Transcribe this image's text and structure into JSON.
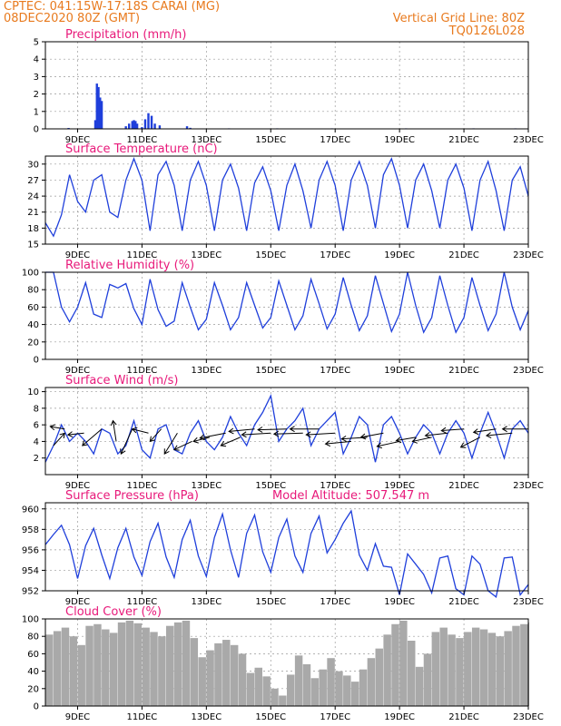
{
  "header": {
    "station": "CPTEC:   041:15W-17:18S   CARAI (MG)",
    "run": "08DEC2020 80Z (GMT)",
    "grid_note": "Vertical Grid Line: 80Z",
    "model": "TQ0126L028"
  },
  "colors": {
    "header": "#e87a1e",
    "titles": "#e8197a",
    "line": "#1f3fdb",
    "cloud": "#a9a9a9",
    "arrow": "#000000"
  },
  "x_axis": {
    "start_day": 8,
    "end_day": 23,
    "ticks": [
      {
        "day": 9,
        "label": "9DEC"
      },
      {
        "day": 11,
        "label": "11DEC"
      },
      {
        "day": 13,
        "label": "13DEC"
      },
      {
        "day": 15,
        "label": "15DEC"
      },
      {
        "day": 17,
        "label": "17DEC"
      },
      {
        "day": 19,
        "label": "19DEC"
      },
      {
        "day": 21,
        "label": "21DEC"
      },
      {
        "day": 23,
        "label": "23DEC"
      }
    ]
  },
  "chart_data": [
    {
      "id": "precip",
      "type": "bar",
      "title": "Precipitation (mm/h)",
      "ylim": [
        0,
        5
      ],
      "yticks": [
        0,
        1,
        2,
        3,
        4,
        5
      ],
      "x_days": [
        8.72,
        9.55,
        9.6,
        9.65,
        9.7,
        9.75,
        10.5,
        10.6,
        10.7,
        10.75,
        10.8,
        10.85,
        11.0,
        11.1,
        11.2,
        11.3,
        11.4,
        11.55,
        12.4,
        12.5,
        13.7,
        15.2,
        16.9,
        19.2,
        21.3,
        22.6
      ],
      "values": [
        0.05,
        0.5,
        2.6,
        2.4,
        1.8,
        1.6,
        0.15,
        0.3,
        0.45,
        0.5,
        0.45,
        0.3,
        0.1,
        0.55,
        0.9,
        0.75,
        0.3,
        0.2,
        0.15,
        0.06,
        0.03,
        0.03,
        0.03,
        0.03,
        0.03,
        0.03
      ]
    },
    {
      "id": "temp",
      "type": "line",
      "title": "Surface Temperature (nC)",
      "ylim": [
        15,
        31.5
      ],
      "yticks": [
        15,
        18,
        21,
        24,
        27,
        30
      ],
      "x_days": [
        8.0,
        8.25,
        8.5,
        8.75,
        9.0,
        9.25,
        9.5,
        9.75,
        10.0,
        10.25,
        10.5,
        10.75,
        11.0,
        11.25,
        11.5,
        11.75,
        12.0,
        12.25,
        12.5,
        12.75,
        13.0,
        13.25,
        13.5,
        13.75,
        14.0,
        14.25,
        14.5,
        14.75,
        15.0,
        15.25,
        15.5,
        15.75,
        16.0,
        16.25,
        16.5,
        16.75,
        17.0,
        17.25,
        17.5,
        17.75,
        18.0,
        18.25,
        18.5,
        18.75,
        19.0,
        19.25,
        19.5,
        19.75,
        20.0,
        20.25,
        20.5,
        20.75,
        21.0,
        21.25,
        21.5,
        21.75,
        22.0,
        22.25,
        22.5,
        22.75,
        23.0
      ],
      "values": [
        19,
        16.5,
        20.5,
        28,
        23,
        21,
        27,
        28,
        21,
        20,
        27,
        31,
        27,
        17.5,
        28,
        30.5,
        26,
        17.5,
        27,
        30.5,
        26,
        17.5,
        27,
        30,
        25.5,
        17.5,
        26.5,
        29.5,
        25,
        17.5,
        26,
        30,
        25,
        18,
        27,
        30.5,
        26,
        17.5,
        27,
        30.5,
        26,
        18,
        28,
        31,
        26,
        18,
        27,
        30,
        25,
        18,
        27,
        30,
        25.5,
        17.5,
        27,
        30.5,
        25,
        17.5,
        27,
        29.5,
        24
      ]
    },
    {
      "id": "rh",
      "type": "line",
      "title": "Relative Humidity (%)",
      "ylim": [
        0,
        100
      ],
      "yticks": [
        0,
        20,
        40,
        60,
        80,
        100
      ],
      "x_days": [
        8.0,
        8.25,
        8.5,
        8.75,
        9.0,
        9.25,
        9.5,
        9.75,
        10.0,
        10.25,
        10.5,
        10.75,
        11.0,
        11.25,
        11.5,
        11.75,
        12.0,
        12.25,
        12.5,
        12.75,
        13.0,
        13.25,
        13.5,
        13.75,
        14.0,
        14.25,
        14.5,
        14.75,
        15.0,
        15.25,
        15.5,
        15.75,
        16.0,
        16.25,
        16.5,
        16.75,
        17.0,
        17.25,
        17.5,
        17.75,
        18.0,
        18.25,
        18.5,
        18.75,
        19.0,
        19.25,
        19.5,
        19.75,
        20.0,
        20.25,
        20.5,
        20.75,
        21.0,
        21.25,
        21.5,
        21.75,
        22.0,
        22.25,
        22.5,
        22.75,
        23.0
      ],
      "values": [
        100,
        100,
        60,
        43,
        60,
        88,
        52,
        48,
        86,
        82,
        87,
        58,
        40,
        92,
        57,
        38,
        44,
        88,
        60,
        34,
        46,
        88,
        62,
        34,
        48,
        88,
        62,
        36,
        48,
        90,
        62,
        34,
        50,
        92,
        64,
        35,
        52,
        94,
        62,
        33,
        50,
        96,
        64,
        32,
        52,
        100,
        62,
        31,
        48,
        96,
        62,
        31,
        48,
        94,
        62,
        33,
        52,
        100,
        60,
        34,
        56
      ]
    },
    {
      "id": "wind",
      "type": "line",
      "title": "Surface Wind (m/s)",
      "ylim": [
        0,
        10.5
      ],
      "yticks": [
        2,
        4,
        6,
        8,
        10
      ],
      "x_days": [
        8.0,
        8.25,
        8.5,
        8.75,
        9.0,
        9.25,
        9.5,
        9.75,
        10.0,
        10.25,
        10.5,
        10.75,
        11.0,
        11.25,
        11.5,
        11.75,
        12.0,
        12.25,
        12.5,
        12.75,
        13.0,
        13.25,
        13.5,
        13.75,
        14.0,
        14.25,
        14.5,
        14.75,
        15.0,
        15.25,
        15.5,
        15.75,
        16.0,
        16.25,
        16.5,
        16.75,
        17.0,
        17.25,
        17.5,
        17.75,
        18.0,
        18.25,
        18.5,
        18.75,
        19.0,
        19.25,
        19.5,
        19.75,
        20.0,
        20.25,
        20.5,
        20.75,
        21.0,
        21.25,
        21.5,
        21.75,
        22.0,
        22.25,
        22.5,
        22.75,
        23.0
      ],
      "values": [
        1.5,
        3.5,
        6,
        4,
        5,
        4,
        2.5,
        5.5,
        5,
        2.5,
        3.5,
        6.5,
        3,
        2,
        5.5,
        6,
        3,
        2.5,
        5,
        6.5,
        4,
        3,
        4.5,
        7,
        5,
        3.5,
        6,
        7.5,
        9.5,
        4,
        5.5,
        6.5,
        8,
        3.5,
        5.5,
        6.5,
        7.5,
        2.5,
        4.5,
        7,
        6,
        1.5,
        6,
        7,
        5,
        2.5,
        4.5,
        6,
        5,
        2.5,
        5,
        6.5,
        5,
        2,
        5,
        7.5,
        5,
        2,
        5.5,
        6.5,
        5
      ],
      "arrows": {
        "x_days": [
          8.25,
          8.6,
          9.2,
          9.75,
          10.2,
          10.7,
          11.2,
          11.6,
          12.1,
          12.55,
          13.1,
          13.6,
          14.05,
          14.5,
          15.0,
          15.5,
          16.0,
          16.5,
          17.0,
          17.5,
          18.0,
          18.5,
          19.0,
          19.5,
          20.0,
          20.5,
          21.0,
          21.5,
          22.0,
          22.5,
          23.0
        ],
        "y": [
          3.5,
          5.5,
          5,
          5.5,
          4,
          5.5,
          5,
          5.5,
          5,
          4,
          4.5,
          5,
          4.5,
          5.5,
          5,
          5.5,
          5,
          5.5,
          5,
          4,
          4.5,
          5,
          4,
          4.5,
          4.5,
          5,
          5.5,
          4.5,
          5.5,
          5,
          5.5
        ],
        "dx": [
          0.35,
          -0.45,
          -0.5,
          -0.6,
          -0.1,
          -0.35,
          -0.5,
          -0.35,
          -0.4,
          -0.55,
          -0.5,
          -0.8,
          -0.6,
          -0.8,
          -0.9,
          -0.9,
          -0.9,
          -0.9,
          -0.9,
          -0.8,
          -0.8,
          -0.7,
          -0.7,
          -0.6,
          -0.6,
          -0.7,
          -0.7,
          -0.6,
          -0.7,
          -0.8,
          -0.8
        ],
        "dy": [
          1.5,
          0.3,
          -0.2,
          -2,
          2.5,
          -3,
          0.5,
          -1.5,
          -2.5,
          -1,
          -0.5,
          -0.6,
          -1,
          -0.3,
          -0.2,
          -0.1,
          -0.1,
          0,
          -0.2,
          -0.3,
          -0.2,
          -0.5,
          -0.6,
          -0.4,
          -0.5,
          -0.3,
          -0.2,
          -1.2,
          -0.4,
          -0.3,
          0
        ]
      }
    },
    {
      "id": "press",
      "type": "line",
      "title": "Surface Pressure (hPa)",
      "subtitle": "Model Altitude: 507.547  m",
      "ylim": [
        952,
        960.6
      ],
      "yticks": [
        952,
        954,
        956,
        958,
        960
      ],
      "x_days": [
        8.0,
        8.25,
        8.5,
        8.75,
        9.0,
        9.25,
        9.5,
        9.75,
        10.0,
        10.25,
        10.5,
        10.75,
        11.0,
        11.25,
        11.5,
        11.75,
        12.0,
        12.25,
        12.5,
        12.75,
        13.0,
        13.25,
        13.5,
        13.75,
        14.0,
        14.25,
        14.5,
        14.75,
        15.0,
        15.25,
        15.5,
        15.75,
        16.0,
        16.25,
        16.5,
        16.75,
        17.0,
        17.25,
        17.5,
        17.75,
        18.0,
        18.25,
        18.5,
        18.75,
        19.0,
        19.25,
        19.5,
        19.75,
        20.0,
        20.25,
        20.5,
        20.75,
        21.0,
        21.25,
        21.5,
        21.75,
        22.0,
        22.25,
        22.5,
        22.75,
        23.0
      ],
      "values": [
        956.5,
        957.5,
        958.4,
        956.5,
        953.2,
        956.4,
        958.1,
        955.5,
        953.2,
        956.2,
        958.1,
        955.3,
        953.5,
        956.8,
        958.6,
        955.3,
        953.3,
        957.0,
        958.9,
        955.4,
        953.4,
        957.2,
        959.5,
        956.0,
        953.3,
        957.6,
        959.4,
        955.8,
        953.8,
        957.2,
        959.0,
        955.4,
        953.8,
        957.6,
        959.3,
        955.7,
        957.0,
        958.6,
        959.8,
        955.5,
        954.0,
        956.6,
        954.4,
        954.3,
        951.6,
        955.6,
        954.6,
        953.6,
        951.8,
        955.2,
        955.4,
        952.2,
        951.6,
        955.4,
        954.6,
        952.0,
        951.4,
        955.2,
        955.3,
        951.6,
        952.6
      ]
    },
    {
      "id": "cloud",
      "type": "bar",
      "title": "Cloud Cover (%)",
      "ylim": [
        0,
        100
      ],
      "yticks": [
        0,
        20,
        40,
        60,
        80,
        100
      ],
      "x_days": [
        8.0,
        8.25,
        8.5,
        8.75,
        9.0,
        9.25,
        9.5,
        9.75,
        10.0,
        10.25,
        10.5,
        10.75,
        11.0,
        11.25,
        11.5,
        11.75,
        12.0,
        12.25,
        12.5,
        12.75,
        13.0,
        13.25,
        13.5,
        13.75,
        14.0,
        14.25,
        14.5,
        14.75,
        15.0,
        15.25,
        15.5,
        15.75,
        16.0,
        16.25,
        16.5,
        16.75,
        17.0,
        17.25,
        17.5,
        17.75,
        18.0,
        18.25,
        18.5,
        18.75,
        19.0,
        19.25,
        19.5,
        19.75,
        20.0,
        20.25,
        20.5,
        20.75,
        21.0,
        21.25,
        21.5,
        21.75,
        22.0,
        22.25,
        22.5,
        22.75,
        23.0
      ],
      "values": [
        82,
        86,
        90,
        80,
        70,
        92,
        94,
        88,
        84,
        96,
        98,
        95,
        90,
        85,
        80,
        92,
        96,
        98,
        78,
        56,
        64,
        72,
        76,
        70,
        60,
        38,
        44,
        34,
        20,
        12,
        36,
        58,
        48,
        32,
        42,
        55,
        40,
        35,
        28,
        42,
        55,
        66,
        82,
        94,
        98,
        75,
        45,
        60,
        85,
        90,
        82,
        78,
        85,
        90,
        88,
        84,
        80,
        86,
        92,
        94,
        96
      ]
    }
  ]
}
